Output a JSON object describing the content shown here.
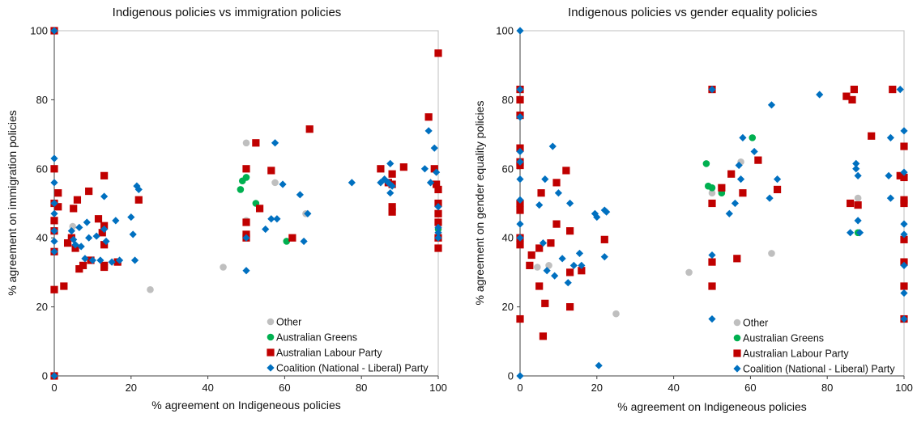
{
  "chart_data": [
    {
      "type": "scatter",
      "title": "Indigenous policies vs immigration policies",
      "xlabel": "% agreement on Indigeneous policies",
      "ylabel": "% agreement on immigration policies",
      "xlim": [
        0,
        100
      ],
      "ylim": [
        0,
        100
      ],
      "xticks": [
        "0",
        "20",
        "40",
        "60",
        "80",
        "100"
      ],
      "yticks": [
        "0",
        "20",
        "40",
        "60",
        "80",
        "100"
      ],
      "grid": false,
      "legend_position": "bottom-right",
      "series": [
        {
          "name": "Other",
          "color": "#BFBFBF",
          "marker": "circle",
          "points": [
            [
              4.8,
              43.3
            ],
            [
              25.0,
              25.0
            ],
            [
              44.0,
              31.5
            ],
            [
              50.0,
              67.5
            ],
            [
              57.5,
              56.0
            ],
            [
              65.5,
              47.0
            ],
            [
              50.0,
              60.0
            ],
            [
              50.0,
              45.0
            ]
          ]
        },
        {
          "name": "Australian Greens",
          "color": "#00B050",
          "marker": "circle",
          "points": [
            [
              48.5,
              54.0
            ],
            [
              49.0,
              56.5
            ],
            [
              50.0,
              57.5
            ],
            [
              52.5,
              50.0
            ],
            [
              60.5,
              39.0
            ],
            [
              100,
              42.5
            ]
          ]
        },
        {
          "name": "Australian Labour Party",
          "color": "#C00000",
          "marker": "square",
          "points": [
            [
              0,
              100
            ],
            [
              0,
              60
            ],
            [
              0,
              50
            ],
            [
              0,
              45
            ],
            [
              0,
              42
            ],
            [
              0,
              36
            ],
            [
              0,
              25
            ],
            [
              0,
              0
            ],
            [
              1,
              53
            ],
            [
              1,
              49
            ],
            [
              2.5,
              26
            ],
            [
              3.5,
              38.5
            ],
            [
              4.5,
              40
            ],
            [
              5,
              48.5
            ],
            [
              5.5,
              37
            ],
            [
              6,
              51
            ],
            [
              6.5,
              31
            ],
            [
              7.5,
              32
            ],
            [
              9,
              53.5
            ],
            [
              9.5,
              33.5
            ],
            [
              11.5,
              45.5
            ],
            [
              12.5,
              41.5
            ],
            [
              13,
              43.5
            ],
            [
              13,
              38
            ],
            [
              13,
              58
            ],
            [
              13,
              32
            ],
            [
              13,
              31.5
            ],
            [
              16.5,
              33
            ],
            [
              22,
              51
            ],
            [
              50,
              60
            ],
            [
              50,
              44.5
            ],
            [
              50,
              41
            ],
            [
              50,
              40
            ],
            [
              52.5,
              67.5
            ],
            [
              53.5,
              48.5
            ],
            [
              56.5,
              59.5
            ],
            [
              62,
              40
            ],
            [
              66.5,
              71.5
            ],
            [
              85,
              60
            ],
            [
              87,
              56
            ],
            [
              88,
              58.5
            ],
            [
              88,
              55.5
            ],
            [
              88,
              49
            ],
            [
              88,
              47.5
            ],
            [
              91,
              60.5
            ],
            [
              97.5,
              75
            ],
            [
              99,
              60
            ],
            [
              99.5,
              55.5
            ],
            [
              100,
              54
            ],
            [
              100,
              50
            ],
            [
              100,
              47
            ],
            [
              100,
              44.5
            ],
            [
              100,
              40
            ],
            [
              100,
              37
            ],
            [
              100,
              93.5
            ]
          ]
        },
        {
          "name": "Coalition (National - Liberal) Party",
          "color": "#0070C0",
          "marker": "diamond",
          "points": [
            [
              0,
              63
            ],
            [
              0,
              56
            ],
            [
              0,
              50
            ],
            [
              0,
              47
            ],
            [
              0,
              42
            ],
            [
              0,
              39
            ],
            [
              0,
              36
            ],
            [
              0,
              100
            ],
            [
              0,
              0
            ],
            [
              4.5,
              42
            ],
            [
              5,
              39.5
            ],
            [
              5.5,
              38
            ],
            [
              6.5,
              43
            ],
            [
              7,
              37.5
            ],
            [
              8,
              34
            ],
            [
              8.5,
              44.5
            ],
            [
              9,
              40
            ],
            [
              10,
              33.5
            ],
            [
              11,
              40.5
            ],
            [
              12,
              33.5
            ],
            [
              13,
              52
            ],
            [
              13,
              42.5
            ],
            [
              13.5,
              39
            ],
            [
              15,
              33
            ],
            [
              16,
              45
            ],
            [
              17,
              33.5
            ],
            [
              20,
              46
            ],
            [
              20.5,
              41
            ],
            [
              21.5,
              55
            ],
            [
              22,
              54
            ],
            [
              21,
              33.5
            ],
            [
              50,
              40
            ],
            [
              50,
              30.5
            ],
            [
              55,
              42.5
            ],
            [
              56.5,
              45.5
            ],
            [
              57.5,
              67.5
            ],
            [
              58,
              45.5
            ],
            [
              59.5,
              55.5
            ],
            [
              64,
              52.5
            ],
            [
              66,
              47
            ],
            [
              65,
              39
            ],
            [
              77.5,
              56
            ],
            [
              85,
              56
            ],
            [
              86,
              57
            ],
            [
              87.5,
              61.5
            ],
            [
              88,
              55
            ],
            [
              87.5,
              53
            ],
            [
              87,
              56
            ],
            [
              96.5,
              60
            ],
            [
              97.5,
              71
            ],
            [
              98,
              56
            ],
            [
              99,
              66
            ],
            [
              99.5,
              59
            ],
            [
              100,
              49
            ],
            [
              100,
              43
            ],
            [
              100,
              40
            ],
            [
              100,
              41.5
            ]
          ]
        }
      ]
    },
    {
      "type": "scatter",
      "title": "Indigenous policies vs gender equality policies",
      "xlabel": "% agreement on Indigeneous policies",
      "ylabel": "% agreement on gender equality policies",
      "xlim": [
        0,
        100
      ],
      "ylim": [
        0,
        100
      ],
      "xticks": [
        "0",
        "20",
        "40",
        "60",
        "80",
        "100"
      ],
      "yticks": [
        "0",
        "20",
        "40",
        "60",
        "80",
        "100"
      ],
      "grid": false,
      "legend_position": "bottom-right",
      "series": [
        {
          "name": "Other",
          "color": "#BFBFBF",
          "marker": "circle",
          "points": [
            [
              4.5,
              31.5
            ],
            [
              25,
              18
            ],
            [
              44,
              30
            ],
            [
              50,
              53
            ],
            [
              57.5,
              62
            ],
            [
              65.5,
              35.5
            ],
            [
              88,
              51.5
            ],
            [
              7.5,
              32
            ]
          ]
        },
        {
          "name": "Australian Greens",
          "color": "#00B050",
          "marker": "circle",
          "points": [
            [
              48.5,
              61.5
            ],
            [
              49,
              55
            ],
            [
              50,
              54.5
            ],
            [
              52.5,
              53
            ],
            [
              60.5,
              69
            ],
            [
              88,
              41.5
            ]
          ]
        },
        {
          "name": "Australian Labour Party",
          "color": "#C00000",
          "marker": "square",
          "points": [
            [
              0,
              83
            ],
            [
              0,
              80
            ],
            [
              0,
              75.5
            ],
            [
              0,
              66
            ],
            [
              0,
              62
            ],
            [
              0,
              61
            ],
            [
              0,
              50
            ],
            [
              0,
              48
            ],
            [
              0,
              40
            ],
            [
              0,
              38
            ],
            [
              0,
              16.5
            ],
            [
              2.5,
              32
            ],
            [
              3,
              35
            ],
            [
              5,
              26
            ],
            [
              5,
              37
            ],
            [
              5.5,
              53
            ],
            [
              6,
              11.5
            ],
            [
              6.5,
              21
            ],
            [
              8,
              38.5
            ],
            [
              9.5,
              44
            ],
            [
              9.5,
              56
            ],
            [
              12,
              59.5
            ],
            [
              13,
              42
            ],
            [
              13,
              30
            ],
            [
              13,
              20
            ],
            [
              16,
              30.5
            ],
            [
              22,
              39.5
            ],
            [
              50,
              83
            ],
            [
              50,
              50
            ],
            [
              50,
              33
            ],
            [
              50,
              26
            ],
            [
              52.5,
              54.5
            ],
            [
              55,
              58.5
            ],
            [
              56.5,
              34
            ],
            [
              58,
              53
            ],
            [
              62,
              62.5
            ],
            [
              67,
              54
            ],
            [
              85,
              81
            ],
            [
              86,
              50
            ],
            [
              86.5,
              80
            ],
            [
              87,
              83
            ],
            [
              88,
              49.5
            ],
            [
              91.5,
              69.5
            ],
            [
              97,
              83
            ],
            [
              99,
              58
            ],
            [
              100,
              57.5
            ],
            [
              100,
              51
            ],
            [
              100,
              50
            ],
            [
              100,
              66.5
            ],
            [
              100,
              39.5
            ],
            [
              100,
              33
            ],
            [
              100,
              26
            ],
            [
              100,
              16.5
            ]
          ]
        },
        {
          "name": "Coalition (National - Liberal) Party",
          "color": "#0070C0",
          "marker": "diamond",
          "points": [
            [
              0,
              100
            ],
            [
              0,
              83
            ],
            [
              0,
              75
            ],
            [
              0,
              65
            ],
            [
              0,
              62
            ],
            [
              0,
              57
            ],
            [
              0,
              51
            ],
            [
              0,
              44
            ],
            [
              0,
              40
            ],
            [
              0,
              0
            ],
            [
              5,
              49.5
            ],
            [
              6,
              38.5
            ],
            [
              6.5,
              57
            ],
            [
              7,
              30.5
            ],
            [
              8.5,
              66.5
            ],
            [
              9,
              29
            ],
            [
              10,
              53
            ],
            [
              11,
              34
            ],
            [
              12.5,
              27
            ],
            [
              13,
              50
            ],
            [
              14,
              32
            ],
            [
              15.5,
              35.5
            ],
            [
              16,
              32
            ],
            [
              19.5,
              47
            ],
            [
              20,
              46
            ],
            [
              20.5,
              3
            ],
            [
              22,
              48
            ],
            [
              22.5,
              47.5
            ],
            [
              22,
              34.5
            ],
            [
              50,
              83
            ],
            [
              50,
              35
            ],
            [
              50,
              16.5
            ],
            [
              54.5,
              47
            ],
            [
              56,
              50
            ],
            [
              57,
              61
            ],
            [
              57.5,
              57
            ],
            [
              58,
              69
            ],
            [
              61,
              65
            ],
            [
              65,
              51.5
            ],
            [
              65.5,
              78.5
            ],
            [
              67,
              57
            ],
            [
              78,
              81.5
            ],
            [
              86,
              41.5
            ],
            [
              87.5,
              61.5
            ],
            [
              87.5,
              60
            ],
            [
              88,
              58
            ],
            [
              88,
              45
            ],
            [
              88.5,
              41.5
            ],
            [
              96,
              58
            ],
            [
              96.5,
              69
            ],
            [
              96.5,
              51.5
            ],
            [
              99,
              83
            ],
            [
              100,
              71
            ],
            [
              100,
              59
            ],
            [
              100,
              44
            ],
            [
              100,
              41
            ],
            [
              100,
              32
            ],
            [
              100,
              24
            ],
            [
              100,
              16.5
            ]
          ]
        }
      ]
    }
  ]
}
